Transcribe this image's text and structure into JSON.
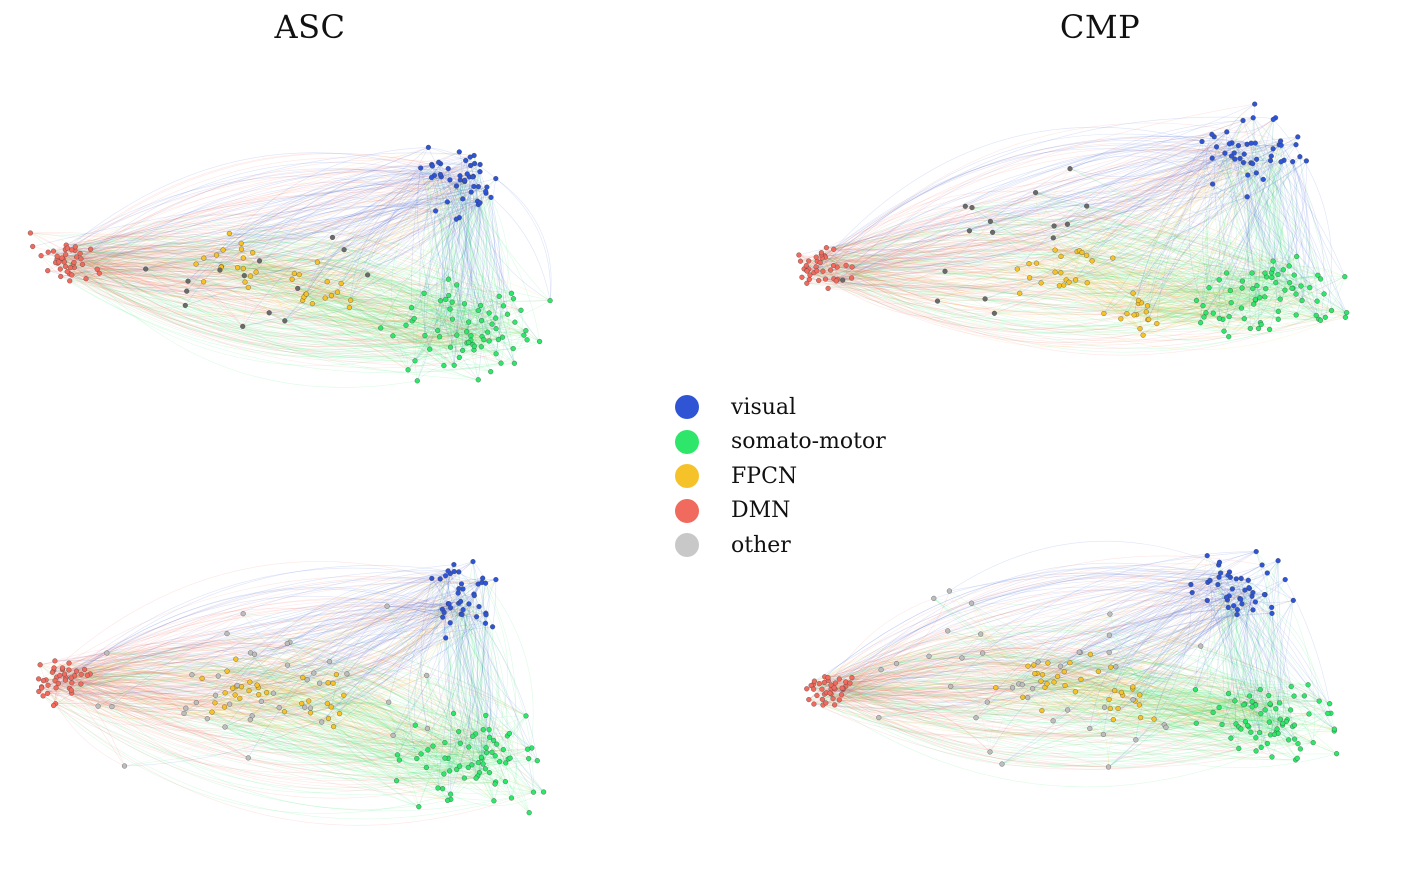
{
  "titles": {
    "left": "ASC",
    "right": "CMP"
  },
  "legend": [
    {
      "label": "visual",
      "color": "#2f55d4",
      "key": "visual"
    },
    {
      "label": "somato-motor",
      "color": "#2ee66a",
      "key": "somato"
    },
    {
      "label": "FPCN",
      "color": "#f5c22a",
      "key": "fpcn"
    },
    {
      "label": "DMN",
      "color": "#f06a5e",
      "key": "dmn"
    },
    {
      "label": "other",
      "color": "#c8c8c8",
      "key": "other"
    }
  ],
  "panels": [
    {
      "id": "tl",
      "group": "ASC",
      "other_color": "#6a6a6a"
    },
    {
      "id": "tr",
      "group": "CMP",
      "other_color": "#6a6a6a"
    },
    {
      "id": "bl",
      "group": "ASC",
      "other_color": "#bdbdbd"
    },
    {
      "id": "br",
      "group": "CMP",
      "other_color": "#bdbdbd"
    }
  ]
}
